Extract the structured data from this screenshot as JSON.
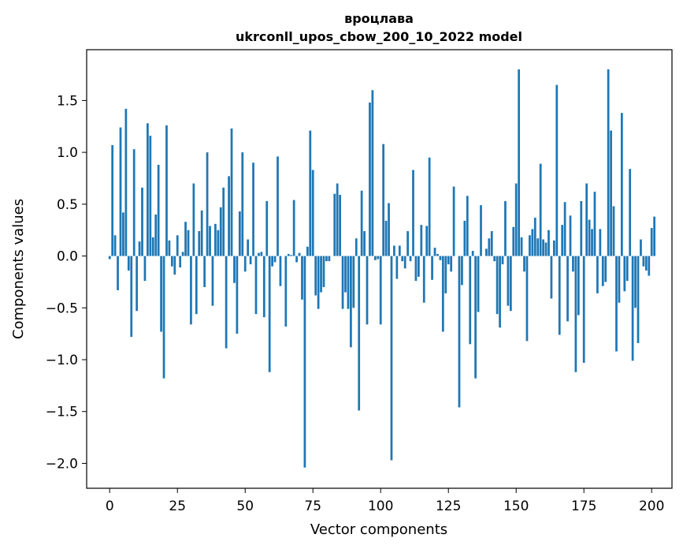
{
  "chart_data": {
    "type": "bar",
    "title": "вроцлава",
    "subtitle": "ukrconll_upos_cbow_200_10_2022 model",
    "xlabel": "Vector components",
    "ylabel": "Components values",
    "xlim": [
      -8.5,
      207.5
    ],
    "ylim": [
      -2.24,
      1.99
    ],
    "xticks": [
      0,
      25,
      50,
      75,
      100,
      125,
      150,
      175,
      200
    ],
    "yticks": [
      -2.0,
      -1.5,
      -1.0,
      -0.5,
      0.0,
      0.5,
      1.0,
      1.5
    ],
    "ytick_labels": [
      "−2.0",
      "−1.5",
      "−1.0",
      "−0.5",
      "0.0",
      "0.5",
      "1.0",
      "1.5"
    ],
    "grid": false,
    "bar_color": "#1f77b4",
    "values": [
      -0.03,
      1.07,
      0.2,
      -0.33,
      1.24,
      0.42,
      1.42,
      -0.14,
      -0.78,
      1.03,
      -0.53,
      0.14,
      0.66,
      -0.24,
      1.28,
      1.16,
      0.18,
      0.4,
      0.88,
      -0.73,
      -1.18,
      1.26,
      0.15,
      -0.1,
      -0.18,
      0.2,
      -0.11,
      0.04,
      0.33,
      0.25,
      -0.66,
      0.7,
      -0.56,
      0.24,
      0.44,
      -0.3,
      1.0,
      0.29,
      -0.48,
      0.31,
      0.25,
      0.47,
      0.66,
      -0.89,
      0.77,
      1.23,
      -0.26,
      -0.75,
      0.43,
      1.0,
      -0.15,
      0.16,
      -0.08,
      0.9,
      -0.56,
      0.03,
      0.04,
      -0.59,
      0.53,
      -1.12,
      -0.1,
      -0.06,
      0.96,
      -0.29,
      0.0,
      -0.68,
      0.02,
      0.01,
      0.54,
      -0.06,
      0.03,
      -0.42,
      -2.04,
      0.09,
      1.21,
      0.83,
      -0.38,
      -0.51,
      -0.35,
      -0.3,
      -0.05,
      -0.05,
      0.0,
      0.6,
      0.7,
      0.59,
      -0.51,
      -0.35,
      -0.51,
      -0.88,
      -0.5,
      0.17,
      -1.49,
      0.63,
      0.24,
      -0.66,
      1.48,
      1.6,
      -0.04,
      -0.03,
      -0.66,
      1.08,
      0.34,
      0.51,
      -1.97,
      0.1,
      -0.22,
      0.1,
      -0.05,
      -0.12,
      0.24,
      -0.05,
      0.83,
      -0.24,
      -0.2,
      0.3,
      -0.45,
      0.29,
      0.95,
      -0.23,
      0.08,
      0.02,
      -0.04,
      -0.73,
      -0.36,
      -0.08,
      -0.15,
      0.67,
      0.0,
      -1.46,
      -0.28,
      0.34,
      0.58,
      -0.85,
      0.05,
      -1.18,
      -0.54,
      0.49,
      0.0,
      0.07,
      0.17,
      0.24,
      -0.05,
      -0.56,
      -0.69,
      -0.08,
      0.53,
      -0.48,
      -0.53,
      0.28,
      0.7,
      1.8,
      0.18,
      -0.15,
      -0.82,
      0.2,
      0.26,
      0.37,
      0.17,
      0.89,
      0.16,
      0.13,
      0.25,
      -0.41,
      0.15,
      1.65,
      -0.76,
      0.3,
      0.52,
      -0.63,
      0.39,
      -0.15,
      -1.12,
      -0.57,
      0.53,
      -1.03,
      0.7,
      0.35,
      0.26,
      0.62,
      -0.36,
      0.26,
      -0.29,
      -0.25,
      1.8,
      1.21,
      0.48,
      -0.92,
      -0.45,
      1.38,
      -0.34,
      -0.24,
      0.84,
      -1.01,
      -0.5,
      -0.84,
      0.16,
      -0.1,
      -0.14,
      -0.19,
      0.27,
      0.38
    ]
  }
}
